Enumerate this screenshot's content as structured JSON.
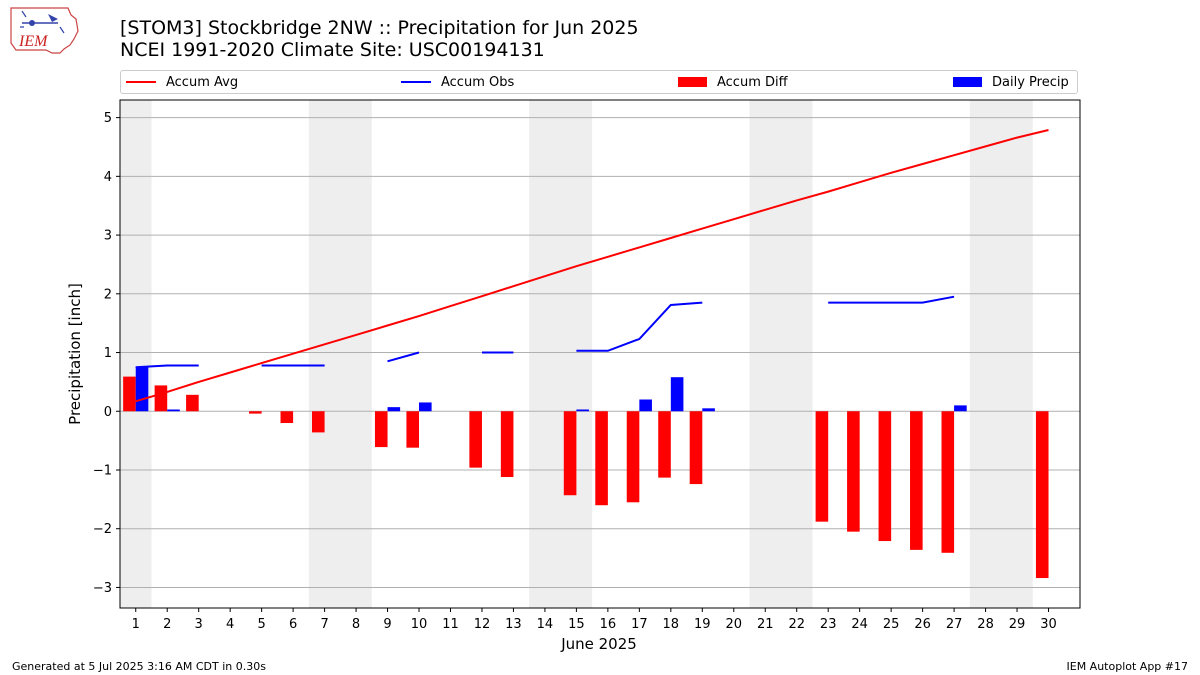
{
  "header": {
    "logo_text": "IEM",
    "title_line1": "[STOM3] Stockbridge 2NW :: Precipitation for Jun 2025",
    "title_line2": "NCEI 1991-2020 Climate Site: USC00194131"
  },
  "footer": {
    "left": "Generated at 5 Jul 2025 3:16 AM CDT in 0.30s",
    "right": "IEM Autoplot App #17"
  },
  "colors": {
    "accum_avg": "#ff0000",
    "accum_obs": "#0000ff",
    "accum_diff": "#ff0000",
    "daily_precip": "#0000ff",
    "weekend_shade": "#eeeeee",
    "grid": "#b0b0b0"
  },
  "chart_data": {
    "type": "bar",
    "title": "[STOM3] Stockbridge 2NW :: Precipitation for Jun 2025",
    "subtitle": "NCEI 1991-2020 Climate Site: USC00194131",
    "xlabel": "June 2025",
    "ylabel": "Precipitation [inch]",
    "ylim": [
      -3.35,
      5.3
    ],
    "xlim": [
      0.5,
      31.0
    ],
    "y_ticks": [
      -3,
      -2,
      -1,
      0,
      1,
      2,
      3,
      4,
      5
    ],
    "y_tick_labels": [
      "−3",
      "−2",
      "−1",
      "0",
      "1",
      "2",
      "3",
      "4",
      "5"
    ],
    "x_ticks": [
      1,
      2,
      3,
      4,
      5,
      6,
      7,
      8,
      9,
      10,
      11,
      12,
      13,
      14,
      15,
      16,
      17,
      18,
      19,
      20,
      21,
      22,
      23,
      24,
      25,
      26,
      27,
      28,
      29,
      30
    ],
    "grid": "horizontal",
    "legend_position": "top",
    "weekend_days": [
      1,
      7,
      8,
      14,
      15,
      21,
      22,
      28,
      29
    ],
    "series": [
      {
        "name": "Accum Avg",
        "kind": "line",
        "x": [
          1,
          2,
          3,
          4,
          5,
          6,
          7,
          8,
          9,
          10,
          11,
          12,
          13,
          14,
          15,
          16,
          17,
          18,
          19,
          20,
          21,
          22,
          23,
          24,
          25,
          26,
          27,
          28,
          29,
          30
        ],
        "values": [
          0.17,
          0.33,
          0.5,
          0.66,
          0.82,
          0.98,
          1.14,
          1.3,
          1.46,
          1.62,
          1.79,
          1.96,
          2.13,
          2.3,
          2.47,
          2.63,
          2.79,
          2.95,
          3.11,
          3.27,
          3.43,
          3.59,
          3.74,
          3.9,
          4.06,
          4.21,
          4.36,
          4.51,
          4.66,
          4.79
        ]
      },
      {
        "name": "Accum Obs",
        "kind": "line",
        "x": [
          1,
          2,
          3,
          4,
          5,
          6,
          7,
          8,
          9,
          10,
          11,
          12,
          13,
          14,
          15,
          16,
          17,
          18,
          19,
          20,
          21,
          22,
          23,
          24,
          25,
          26,
          27,
          28,
          29,
          30
        ],
        "values": [
          0.75,
          0.78,
          0.78,
          null,
          0.78,
          0.78,
          0.78,
          null,
          0.85,
          1.0,
          null,
          1.0,
          1.0,
          null,
          1.03,
          1.03,
          1.23,
          1.81,
          1.85,
          null,
          null,
          null,
          1.85,
          1.85,
          1.85,
          1.85,
          1.95,
          null,
          null,
          null
        ]
      },
      {
        "name": "Accum Diff",
        "kind": "bar",
        "x": [
          1,
          2,
          3,
          4,
          5,
          6,
          7,
          8,
          9,
          10,
          11,
          12,
          13,
          14,
          15,
          16,
          17,
          18,
          19,
          20,
          21,
          22,
          23,
          24,
          25,
          26,
          27,
          28,
          29,
          30
        ],
        "values": [
          0.59,
          0.44,
          0.28,
          null,
          -0.04,
          -0.2,
          -0.36,
          null,
          -0.61,
          -0.62,
          null,
          -0.96,
          -1.12,
          null,
          -1.43,
          -1.6,
          -1.55,
          -1.13,
          -1.24,
          null,
          null,
          null,
          -1.88,
          -2.05,
          -2.21,
          -2.36,
          -2.41,
          null,
          null,
          -2.84
        ]
      },
      {
        "name": "Daily Precip",
        "kind": "bar",
        "x": [
          1,
          2,
          3,
          4,
          5,
          6,
          7,
          8,
          9,
          10,
          11,
          12,
          13,
          14,
          15,
          16,
          17,
          18,
          19,
          20,
          21,
          22,
          23,
          24,
          25,
          26,
          27,
          28,
          29,
          30
        ],
        "values": [
          0.76,
          0.03,
          0,
          0,
          0,
          0,
          0,
          0,
          0.07,
          0.15,
          0,
          0,
          0,
          0,
          0.03,
          0,
          0.2,
          0.58,
          0.05,
          0,
          0,
          0,
          0,
          0,
          0,
          0,
          0.1,
          0,
          0,
          0
        ]
      }
    ]
  }
}
